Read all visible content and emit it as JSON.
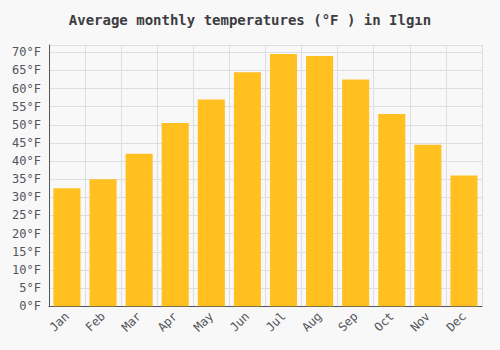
{
  "chart_data": {
    "type": "bar",
    "title": "Average monthly temperatures (°F ) in Ilgın",
    "categories": [
      "Jan",
      "Feb",
      "Mar",
      "Apr",
      "May",
      "Jun",
      "Jul",
      "Aug",
      "Sep",
      "Oct",
      "Nov",
      "Dec"
    ],
    "values": [
      32.5,
      35.0,
      42.0,
      50.5,
      57.0,
      64.5,
      69.5,
      69.0,
      62.5,
      53.0,
      44.5,
      36.0
    ],
    "color": "#FFC020",
    "ylim": [
      0,
      72
    ],
    "yticks": [
      {
        "value": 0,
        "label": "0°F"
      },
      {
        "value": 5,
        "label": "5°F"
      },
      {
        "value": 10,
        "label": "10°F"
      },
      {
        "value": 15,
        "label": "15°F"
      },
      {
        "value": 20,
        "label": "20°F"
      },
      {
        "value": 25,
        "label": "25°F"
      },
      {
        "value": 30,
        "label": "30°F"
      },
      {
        "value": 35,
        "label": "35°F"
      },
      {
        "value": 40,
        "label": "40°F"
      },
      {
        "value": 45,
        "label": "45°F"
      },
      {
        "value": 50,
        "label": "50°F"
      },
      {
        "value": 55,
        "label": "55°F"
      },
      {
        "value": 60,
        "label": "60°F"
      },
      {
        "value": 65,
        "label": "65°F"
      },
      {
        "value": 70,
        "label": "70°F"
      }
    ],
    "grid": true
  }
}
